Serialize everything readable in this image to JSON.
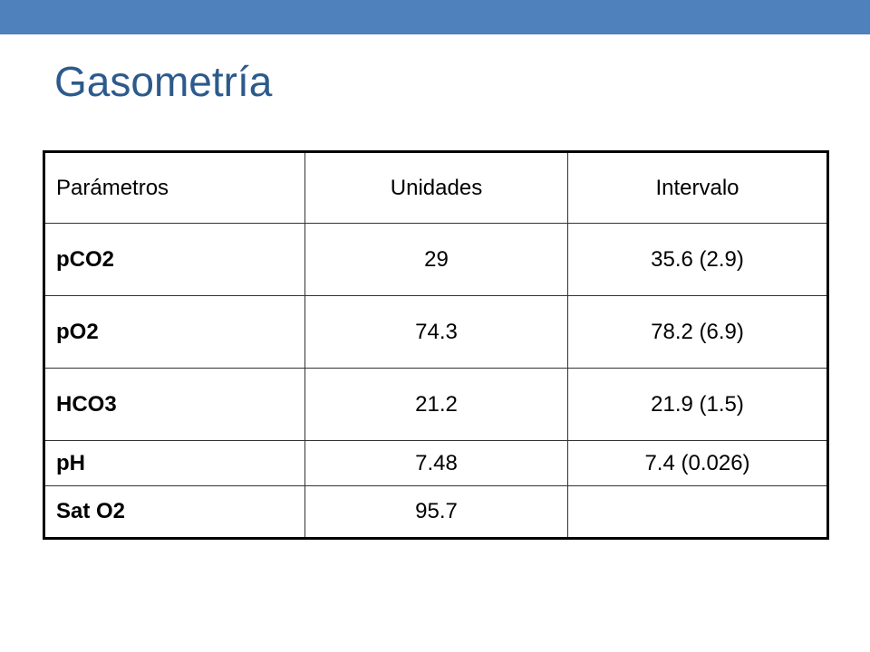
{
  "header": {
    "title": "Gasometría"
  },
  "table": {
    "columns": [
      "Parámetros",
      "Unidades",
      "Intervalo"
    ],
    "rows": [
      [
        "pCO2",
        "29",
        "35.6 (2.9)"
      ],
      [
        "pO2",
        "74.3",
        "78.2 (6.9)"
      ],
      [
        "HCO3",
        "21.2",
        "21.9 (1.5)"
      ],
      [
        "pH",
        "7.48",
        "7.4 (0.026)"
      ],
      [
        "Sat O2",
        "95.7"
      ]
    ]
  }
}
